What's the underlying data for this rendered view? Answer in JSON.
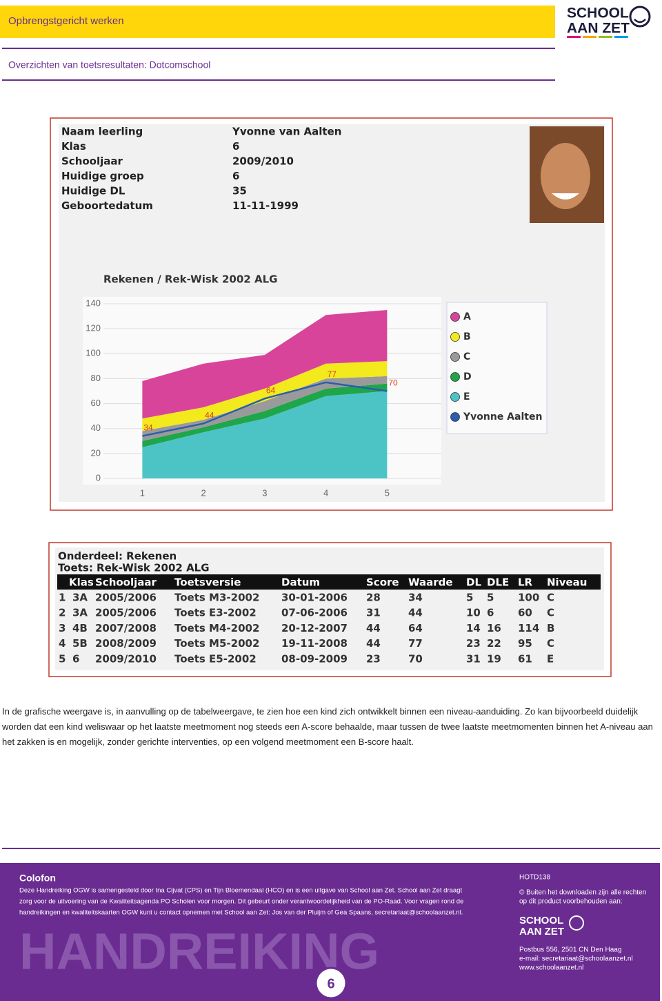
{
  "header": {
    "title": "Opbrengstgericht werken",
    "subtitle": "Overzichten van toetsresultaten: Dotcomschool",
    "logo": [
      "SCHOOL",
      "AAN ZET"
    ]
  },
  "student": {
    "labels": [
      "Naam leerling",
      "Klas",
      "Schooljaar",
      "Huidige groep",
      "Huidige DL",
      "Geboortedatum"
    ],
    "values": [
      "Yvonne van Aalten",
      "6",
      "2009/2010",
      "6",
      "35",
      "11-11-1999"
    ]
  },
  "chart_data": {
    "type": "area",
    "stacked": true,
    "title": "Rekenen / Rek-Wisk 2002 ALG",
    "categories": [
      "1",
      "2",
      "3",
      "4",
      "5"
    ],
    "ylim": [
      0,
      140
    ],
    "yticks": [
      0,
      20,
      40,
      60,
      80,
      100,
      120,
      140
    ],
    "grid": true,
    "legend": "right",
    "series": [
      {
        "name": "A",
        "color": "#d9449b",
        "values": [
          30,
          35,
          27,
          39,
          41
        ]
      },
      {
        "name": "B",
        "color": "#f2ea1c",
        "values": [
          10,
          10,
          10,
          12,
          12
        ]
      },
      {
        "name": "C",
        "color": "#9a9a9a",
        "values": [
          8,
          6,
          8,
          8,
          6
        ]
      },
      {
        "name": "D",
        "color": "#1fa54a",
        "values": [
          5,
          4,
          6,
          6,
          6
        ]
      },
      {
        "name": "E",
        "color": "#4cc4c6",
        "values": [
          25,
          37,
          48,
          66,
          70
        ]
      },
      {
        "name": "Yvonne Aalten",
        "type": "line",
        "color": "#2a5db0",
        "values": [
          34,
          44,
          64,
          77,
          70
        ],
        "data_labels": true,
        "label_color": "#e03a2a"
      }
    ]
  },
  "table": {
    "title": "Onderdeel: Rekenen",
    "subtitle": "Toets: Rek-Wisk 2002 ALG",
    "header": [
      "Klas",
      "Schooljaar",
      "Toetsversie",
      "Datum",
      "Score",
      "Waarde",
      "DL",
      "DLE",
      "LR",
      "Niveau"
    ],
    "rows": [
      [
        "1",
        "3A",
        "2005/2006",
        "Toets M3-2002",
        "30-01-2006",
        "28",
        "34",
        "5",
        "5",
        "100",
        "C"
      ],
      [
        "2",
        "3A",
        "2005/2006",
        "Toets E3-2002",
        "07-06-2006",
        "31",
        "44",
        "10",
        "6",
        "60",
        "C"
      ],
      [
        "3",
        "4B",
        "2007/2008",
        "Toets M4-2002",
        "20-12-2007",
        "44",
        "64",
        "14",
        "16",
        "114",
        "B"
      ],
      [
        "4",
        "5B",
        "2008/2009",
        "Toets M5-2002",
        "19-11-2008",
        "44",
        "77",
        "23",
        "22",
        "95",
        "C"
      ],
      [
        "5",
        "6",
        "2009/2010",
        "Toets E5-2002",
        "08-09-2009",
        "23",
        "70",
        "31",
        "19",
        "61",
        "E"
      ]
    ]
  },
  "body": "In de grafische weergave is, in aanvulling op de tabelweergave, te zien hoe een kind zich ontwikkelt binnen een niveau-aanduiding. Zo kan bijvoorbeeld duidelijk worden dat een kind weliswaar op het laatste meetmoment nog steeds een A-score behaalde, maar tussen de twee laatste meetmomenten binnen het A-niveau aan het zakken is en mogelijk, zonder gerichte interventies, op een volgend meetmoment een B-score haalt.",
  "footer": {
    "colofon_title": "Colofon",
    "colofon": [
      "Deze Handreiking OGW is samengesteld door Ina Cijvat (CPS) en Tijn Bloemendaal (HCO) en is een uitgave van School aan Zet. School aan Zet draagt",
      "zorg voor de uitvoering van de Kwaliteitsagenda PO Scholen voor morgen. Dit gebeurt onder verantwoordelijkheid van de PO-Raad. Voor vragen rond de",
      "handreikingen en kwaliteitskaarten OGW kunt u contact opnemen met School aan Zet: Jos van der Pluijm of Gea Spaans, secretariaat@schoolaanzet.nl."
    ],
    "code": "HOTD138",
    "rights": [
      "© Buiten het downloaden zijn alle rechten",
      "op dit product voorbehouden aan:"
    ],
    "logo": [
      "SCHOOL",
      "AAN ZET"
    ],
    "address": [
      "Postbus 556, 2501 CN Den Haag",
      "e-mail: secretariaat@schoolaanzet.nl",
      "www.schoolaanzet.nl"
    ],
    "watermark": "HANDREIKING",
    "page": "6"
  }
}
